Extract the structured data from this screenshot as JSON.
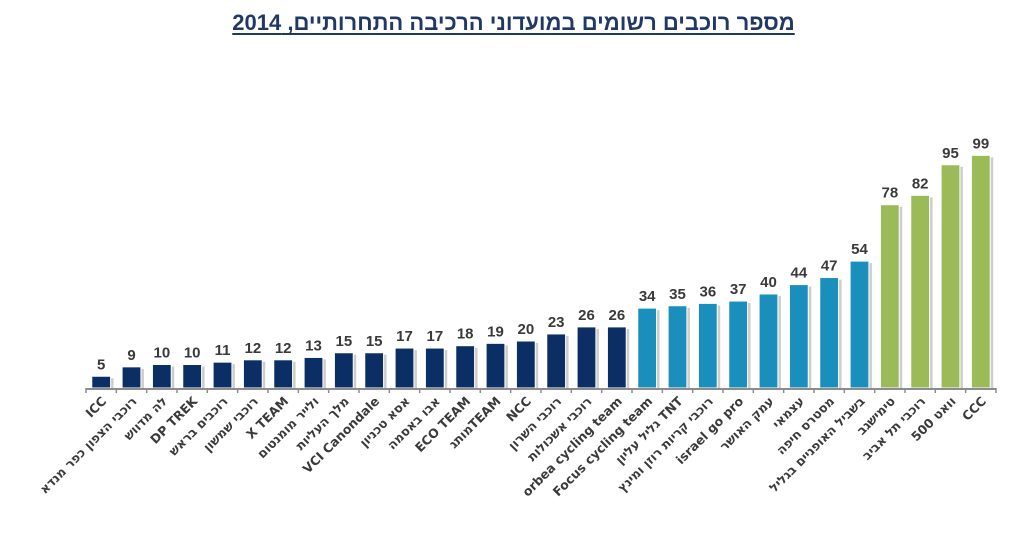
{
  "chart_data": {
    "type": "bar",
    "title": "מספר רוכבים רשומים במועדוני הרכיבה התחרותיים, 2014",
    "xlabel": "",
    "ylabel": "",
    "ylim": [
      0,
      100
    ],
    "grid": false,
    "legend": "none",
    "data_labels": true,
    "colors": {
      "dark_blue": "#0b2f65",
      "teal": "#1a8fbc",
      "green": "#9bbb59",
      "axis": "#8c8c8c",
      "shadow": "#b8b8b8",
      "text": "#3a3a3a",
      "title": "#1f3864"
    },
    "categories": [
      "ICC",
      "רוכבי הצפון כפר מנדא",
      "לה מדווש",
      "DP TREK",
      "רוכבים בראש",
      "רוכבי שמשון",
      "X TEAM",
      "ולייר מומנטום",
      "מלך העליות",
      "VCI Canondale",
      "אסא טכניון",
      "אבו באסמה",
      "ECO TEAM",
      "מותגTEAM",
      "NCC",
      "רוכבי השרון",
      "רוכבי אשכולות",
      "orbea cycling team",
      "Focus cycling team",
      "גליל עליון TNT",
      "רוכבי קריות רוזן ומינץ",
      "israel go pro",
      "עמק האושר",
      "עצמאי",
      "מסטרס חיפה",
      "בשביל האופניים בגליל",
      "טימישגב",
      "רוכבי תל אביב",
      "וואט 500",
      "CCC"
    ],
    "values": [
      5,
      9,
      10,
      10,
      11,
      12,
      12,
      13,
      15,
      15,
      17,
      17,
      18,
      19,
      20,
      23,
      26,
      26,
      34,
      35,
      36,
      37,
      40,
      44,
      47,
      54,
      78,
      82,
      95,
      99
    ],
    "bar_color_groups": [
      "dark_blue",
      "dark_blue",
      "dark_blue",
      "dark_blue",
      "dark_blue",
      "dark_blue",
      "dark_blue",
      "dark_blue",
      "dark_blue",
      "dark_blue",
      "dark_blue",
      "dark_blue",
      "dark_blue",
      "dark_blue",
      "dark_blue",
      "dark_blue",
      "dark_blue",
      "dark_blue",
      "teal",
      "teal",
      "teal",
      "teal",
      "teal",
      "teal",
      "teal",
      "teal",
      "green",
      "green",
      "green",
      "green"
    ]
  }
}
